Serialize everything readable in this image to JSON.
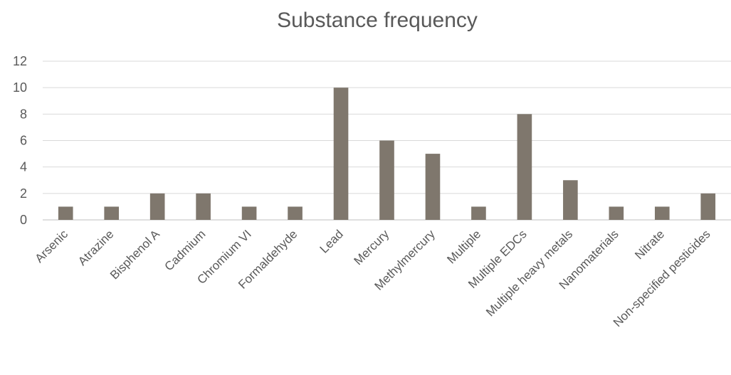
{
  "chart_data": {
    "type": "bar",
    "title": "Substance frequency",
    "xlabel": "",
    "ylabel": "",
    "ylim": [
      0,
      12
    ],
    "yticks": [
      0,
      2,
      4,
      6,
      8,
      10,
      12
    ],
    "grid": true,
    "legend": "none",
    "bar_color": "#7f776d",
    "categories": [
      "Arsenic",
      "Atrazine",
      "Bisphenol A",
      "Cadmium",
      "Chromium VI",
      "Formaldehyde",
      "Lead",
      "Mercury",
      "Methylmercury",
      "Multiple",
      "Multiple EDCs",
      "Multiple heavy metals",
      "Nanomaterials",
      "Nitrate",
      "Non-specified pesticides"
    ],
    "values": [
      1,
      1,
      2,
      2,
      1,
      1,
      10,
      6,
      5,
      1,
      8,
      3,
      1,
      1,
      2
    ]
  }
}
